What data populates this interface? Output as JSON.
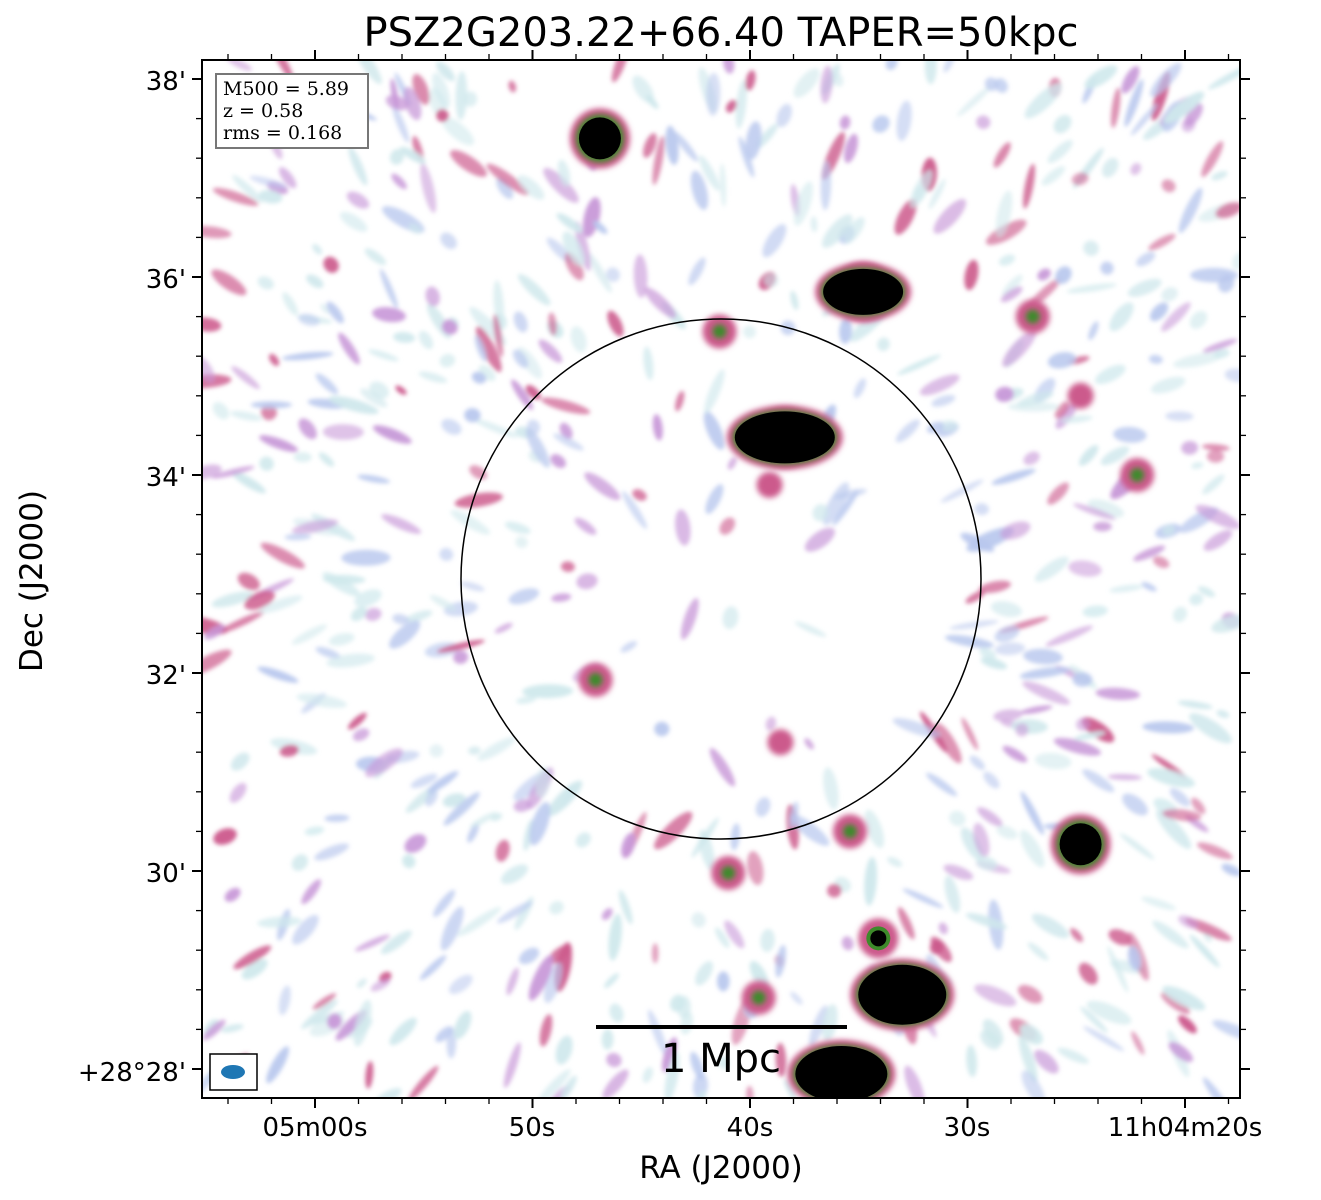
{
  "chart_data": {
    "type": "heatmap",
    "title": "PSZ2G203.22+66.40 TAPER=50kpc",
    "xlabel": "RA (J2000)",
    "ylabel": "Dec (J2000)",
    "x_ticks": [
      "05m00s",
      "50s",
      "40s",
      "30s",
      "11h04m20s"
    ],
    "y_ticks": [
      "+28°28'",
      "30'",
      "32'",
      "34'",
      "36'",
      "38'"
    ],
    "info_box": [
      "M500 = 5.89",
      "z = 0.58",
      "rms = 0.168"
    ],
    "scale_bar_label": "1 Mpc",
    "colormap": [
      "#ffffff",
      "#cfe8ec",
      "#b9c8ee",
      "#c898d8",
      "#cc5a8c",
      "#3d8a2a",
      "#000000"
    ],
    "beam_color": "#1f77b4",
    "sources": [
      {
        "ra_s": 46.9,
        "dec_min": 37.4,
        "strength": "black"
      },
      {
        "ra_s": 34.8,
        "dec_min": 35.85,
        "strength": "black"
      },
      {
        "ra_s": 38.4,
        "dec_min": 34.38,
        "strength": "black"
      },
      {
        "ra_s": 24.8,
        "dec_min": 30.27,
        "strength": "black"
      },
      {
        "ra_s": 33.0,
        "dec_min": 28.75,
        "strength": "black"
      },
      {
        "ra_s": 35.8,
        "dec_min": 27.95,
        "strength": "black"
      },
      {
        "ra_s": 34.1,
        "dec_min": 29.32,
        "strength": "strong"
      },
      {
        "ra_s": 41.4,
        "dec_min": 35.45,
        "strength": "medium"
      },
      {
        "ra_s": 22.2,
        "dec_min": 34.0,
        "strength": "medium"
      },
      {
        "ra_s": 27.0,
        "dec_min": 35.6,
        "strength": "medium"
      },
      {
        "ra_s": 47.1,
        "dec_min": 31.93,
        "strength": "medium"
      },
      {
        "ra_s": 41.0,
        "dec_min": 29.98,
        "strength": "medium"
      },
      {
        "ra_s": 39.6,
        "dec_min": 28.72,
        "strength": "medium"
      },
      {
        "ra_s": 35.4,
        "dec_min": 30.4,
        "strength": "medium"
      },
      {
        "ra_s": 24.8,
        "dec_min": 34.8,
        "strength": "weak"
      },
      {
        "ra_s": 38.6,
        "dec_min": 31.3,
        "strength": "weak"
      },
      {
        "ra_s": 39.1,
        "dec_min": 33.9,
        "strength": "weak"
      }
    ]
  }
}
